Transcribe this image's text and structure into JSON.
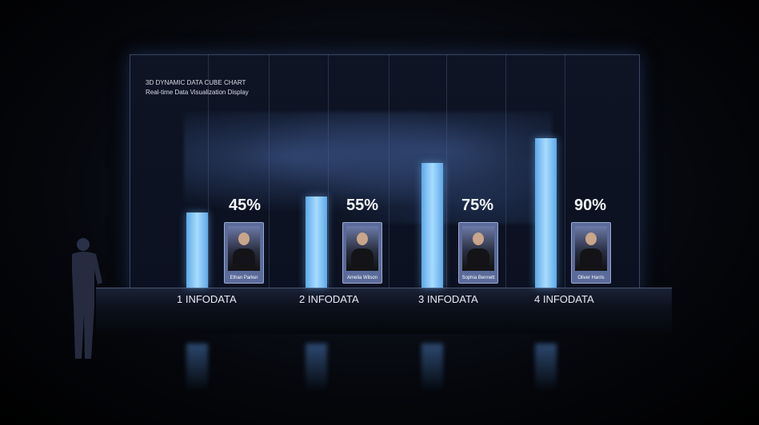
{
  "header": {
    "title": "3D DYNAMIC DATA CUBE CHART",
    "subtitle": "Real-time Data Visualization Display"
  },
  "chart_data": {
    "type": "bar",
    "title": "3D DYNAMIC DATA CUBE CHART",
    "subtitle": "Real-time Data Visualization Display",
    "categories": [
      "1 INFODATA",
      "2 INFODATA",
      "3 INFODATA",
      "4 INFODATA"
    ],
    "values": [
      45,
      55,
      75,
      90
    ],
    "value_labels": [
      "45%",
      "55%",
      "75%",
      "90%"
    ],
    "people": [
      "Ethan Parker",
      "Amelia Wilson",
      "Sophia Bennett",
      "Oliver Harris"
    ],
    "ylim": [
      0,
      100
    ],
    "bar_color": "#8ccaf8"
  }
}
